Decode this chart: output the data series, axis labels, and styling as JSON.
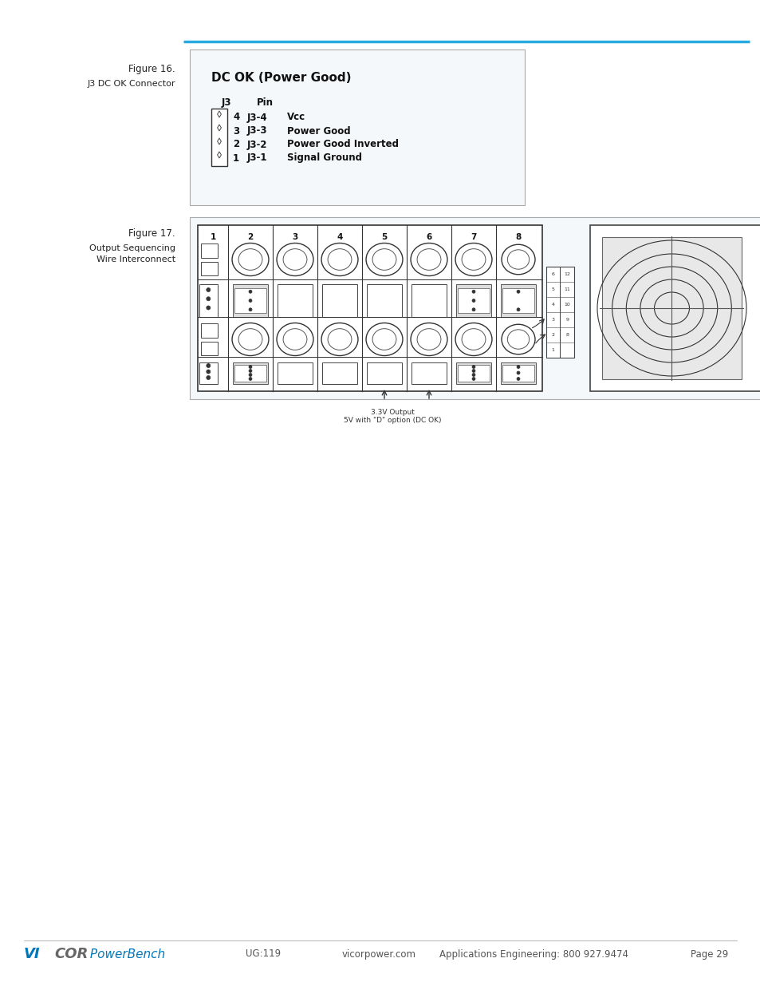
{
  "bg_color": "#ffffff",
  "accent_line_color": "#29abe2",
  "fig16_label": "Figure 16.",
  "fig16_sublabel": "J3 DC OK Connector",
  "fig16_pins": [
    {
      "num": "4",
      "pin": "J3-4",
      "desc": "Vcc"
    },
    {
      "num": "3",
      "pin": "J3-3",
      "desc": "Power Good"
    },
    {
      "num": "2",
      "pin": "J3-2",
      "desc": "Power Good Inverted"
    },
    {
      "num": "1",
      "pin": "J3-1",
      "desc": "Signal Ground"
    }
  ],
  "fig17_label": "Figure 17.",
  "fig17_sublabel1": "Output Sequencing",
  "fig17_sublabel2": "Wire Interconnect",
  "footer_ug": "UG:119",
  "footer_web": "vicorpower.com",
  "footer_app": "Applications Engineering: 800 927.9474",
  "footer_page": "Page 29"
}
